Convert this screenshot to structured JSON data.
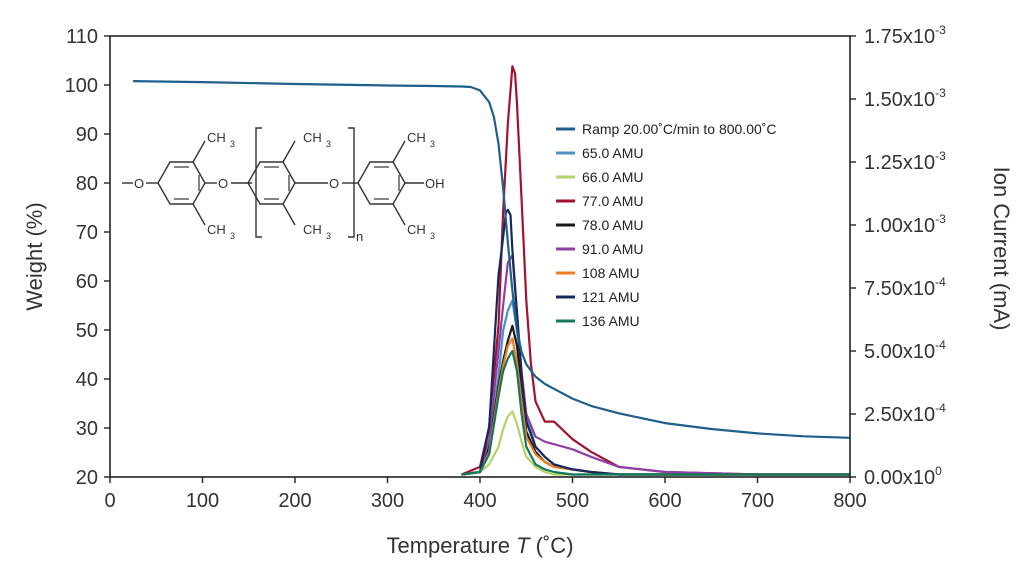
{
  "chart_data": {
    "type": "line",
    "xlabel": "Temperature",
    "xlabel_var": "T",
    "xlabel_unit": " (˚C)",
    "ylabel_left": "Weight (%)",
    "ylabel_right": "Ion Current (mA)",
    "xlim": [
      0,
      800
    ],
    "ylim_left": [
      20,
      110
    ],
    "ylim_right": [
      0,
      0.00175
    ],
    "x_ticks": [
      "0",
      "100",
      "200",
      "300",
      "400",
      "500",
      "600",
      "700",
      "800"
    ],
    "y_left_ticks": [
      "20",
      "30",
      "40",
      "50",
      "60",
      "70",
      "80",
      "90",
      "100",
      "110"
    ],
    "y_right_ticks": [
      {
        "mant": "0.00x10",
        "exp": "0"
      },
      {
        "mant": "2.50x10",
        "exp": "-4"
      },
      {
        "mant": "5.00x10",
        "exp": "-4"
      },
      {
        "mant": "7.50x10",
        "exp": "-4"
      },
      {
        "mant": "1.00x10",
        "exp": "-3"
      },
      {
        "mant": "1.25x10",
        "exp": "-3"
      },
      {
        "mant": "1.50x10",
        "exp": "-3"
      },
      {
        "mant": "1.75x10",
        "exp": "-3"
      }
    ],
    "grid": false,
    "legend_position": "top-right",
    "weight_series": {
      "name": "Ramp 20.00˚C/min to 800.00˚C",
      "color": "#1f5f8b",
      "axis": "left",
      "x": [
        25,
        100,
        200,
        300,
        350,
        380,
        390,
        400,
        410,
        415,
        420,
        425,
        430,
        435,
        440,
        445,
        450,
        460,
        470,
        480,
        500,
        520,
        550,
        600,
        650,
        700,
        750,
        800
      ],
      "y": [
        100.8,
        100.6,
        100.2,
        99.9,
        99.8,
        99.7,
        99.6,
        98.9,
        96.5,
        93.5,
        88,
        79,
        68,
        58,
        50,
        45.5,
        43,
        40.5,
        39,
        38,
        36,
        34.5,
        33,
        31,
        29.8,
        28.9,
        28.3,
        28
      ]
    },
    "ion_series": [
      {
        "name": "65.0 AMU",
        "color": "#4a90c8",
        "axis": "right",
        "x": [
          380,
          400,
          410,
          420,
          425,
          430,
          435,
          440,
          445,
          450,
          460,
          470,
          480,
          500,
          520,
          550,
          600,
          700,
          800
        ],
        "y": [
          1e-05,
          2e-05,
          0.00012,
          0.0004,
          0.00058,
          0.00066,
          0.0007,
          0.00058,
          0.00038,
          0.00025,
          0.00012,
          8e-05,
          5e-05,
          3e-05,
          2e-05,
          1e-05,
          1e-05,
          1e-05,
          1e-05
        ]
      },
      {
        "name": "66.0 AMU",
        "color": "#b5d26a",
        "axis": "right",
        "x": [
          380,
          400,
          410,
          420,
          425,
          430,
          435,
          440,
          445,
          450,
          460,
          470,
          480,
          500,
          520,
          550,
          600,
          700,
          800
        ],
        "y": [
          1e-05,
          2e-05,
          5e-05,
          0.00012,
          0.00019,
          0.00024,
          0.00026,
          0.00021,
          0.00014,
          8e-05,
          4e-05,
          2e-05,
          1e-05,
          1e-05,
          1e-05,
          1e-05,
          1e-05,
          1e-05,
          1e-05
        ]
      },
      {
        "name": "77.0 AMU",
        "color": "#a3122e",
        "axis": "right",
        "x": [
          380,
          400,
          410,
          420,
          425,
          430,
          435,
          438,
          440,
          445,
          450,
          455,
          460,
          470,
          480,
          500,
          520,
          550,
          600,
          700,
          800
        ],
        "y": [
          1e-05,
          4e-05,
          0.0002,
          0.0006,
          0.00105,
          0.0014,
          0.00163,
          0.0016,
          0.00148,
          0.0011,
          0.0007,
          0.00045,
          0.0003,
          0.00022,
          0.00022,
          0.00015,
          0.0001,
          4e-05,
          2e-05,
          1e-05,
          1e-05
        ]
      },
      {
        "name": "78.0 AMU",
        "color": "#1a1a1a",
        "axis": "right",
        "x": [
          380,
          400,
          410,
          420,
          425,
          430,
          435,
          440,
          445,
          450,
          460,
          470,
          480,
          500,
          520,
          550,
          600,
          700,
          800
        ],
        "y": [
          1e-05,
          2e-05,
          0.00012,
          0.00036,
          0.00046,
          0.00054,
          0.0006,
          0.00052,
          0.00035,
          0.00018,
          0.0001,
          6e-05,
          4e-05,
          3e-05,
          2e-05,
          1e-05,
          1e-05,
          1e-05,
          1e-05
        ]
      },
      {
        "name": "91.0 AMU",
        "color": "#8e3fa8",
        "axis": "right",
        "x": [
          380,
          400,
          410,
          420,
          425,
          430,
          435,
          440,
          445,
          450,
          460,
          470,
          480,
          500,
          520,
          550,
          600,
          700,
          800
        ],
        "y": [
          1e-05,
          2e-05,
          0.00015,
          0.0005,
          0.00068,
          0.00085,
          0.00088,
          0.00065,
          0.00042,
          0.00025,
          0.00016,
          0.00014,
          0.00013,
          0.00011,
          8e-05,
          4e-05,
          2e-05,
          1e-05,
          1e-05
        ]
      },
      {
        "name": "108 AMU",
        "color": "#ef7d22",
        "axis": "right",
        "x": [
          380,
          400,
          410,
          420,
          425,
          430,
          435,
          440,
          445,
          450,
          460,
          470,
          480,
          500,
          520,
          550,
          600,
          700,
          800
        ],
        "y": [
          1e-05,
          2e-05,
          0.0001,
          0.00034,
          0.00044,
          0.00052,
          0.00055,
          0.00045,
          0.0003,
          0.00016,
          9e-05,
          6e-05,
          4e-05,
          3e-05,
          2e-05,
          1e-05,
          1e-05,
          1e-05,
          1e-05
        ]
      },
      {
        "name": "121 AMU",
        "color": "#132a5c",
        "axis": "right",
        "x": [
          380,
          400,
          410,
          420,
          425,
          428,
          430,
          433,
          435,
          440,
          445,
          450,
          460,
          470,
          480,
          500,
          520,
          550,
          600,
          700,
          800
        ],
        "y": [
          1e-05,
          2e-05,
          0.0002,
          0.0008,
          0.00095,
          0.00105,
          0.00106,
          0.00104,
          0.0009,
          0.00065,
          0.0004,
          0.00022,
          0.00012,
          8e-05,
          5e-05,
          3e-05,
          2e-05,
          1e-05,
          1e-05,
          1e-05,
          1e-05
        ]
      },
      {
        "name": "136 AMU",
        "color": "#127a5a",
        "axis": "right",
        "x": [
          380,
          400,
          410,
          420,
          425,
          430,
          435,
          440,
          445,
          450,
          460,
          470,
          480,
          500,
          520,
          550,
          600,
          700,
          800
        ],
        "y": [
          1e-05,
          2e-05,
          9e-05,
          0.00032,
          0.00042,
          0.00047,
          0.0005,
          0.00042,
          0.00025,
          0.00012,
          5e-05,
          3e-05,
          2e-05,
          1e-05,
          1e-05,
          1e-05,
          1e-05,
          1e-05,
          1e-05
        ]
      }
    ]
  },
  "structure": {
    "ch3": "CH",
    "ch3_sub": "3",
    "o": "O",
    "oh": "OH",
    "n": "n"
  }
}
